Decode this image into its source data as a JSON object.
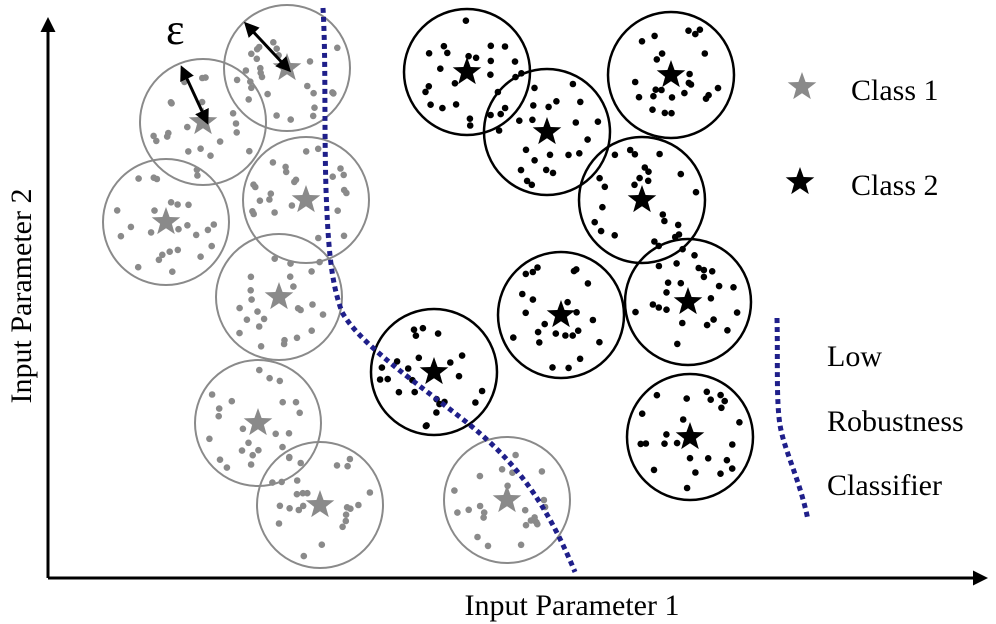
{
  "figure": {
    "epsilon_symbol": "ε",
    "x_axis_label": "Input Parameter 1",
    "y_axis_label": "Input Parameter 2"
  },
  "legend": {
    "class1_label": "Class 1",
    "class2_label": "Class 2",
    "boundary_label_line1": "Low",
    "boundary_label_line2": "Robustness",
    "boundary_label_line3": "Classifier"
  },
  "colors": {
    "class1": "#8a8a8a",
    "class2": "#000000",
    "boundary": "#1f1f8a",
    "axis": "#000000"
  },
  "icons": {
    "class1_marker": "star-icon",
    "class2_marker": "star-icon",
    "epsilon_marker": "double-arrow-icon"
  }
}
